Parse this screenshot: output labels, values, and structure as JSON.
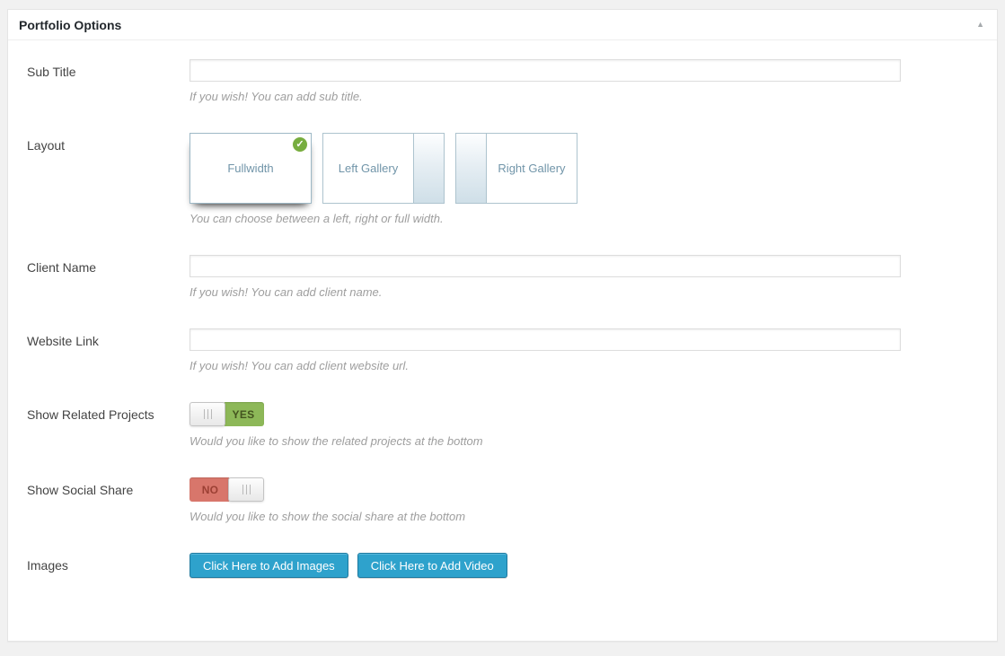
{
  "colors": {
    "accent_blue": "#2ea2cc",
    "toggle_green": "#8db858",
    "toggle_red": "#d8766b",
    "check_badge_green": "#77ad3f",
    "page_background": "#f1f1f1"
  },
  "icons": {
    "collapse": "▲",
    "check": "✓"
  },
  "panel": {
    "title": "Portfolio Options"
  },
  "fields": {
    "sub_title": {
      "label": "Sub Title",
      "value": "",
      "hint": "If you wish! You can add sub title."
    },
    "layout": {
      "label": "Layout",
      "hint": "You can choose between a left, right or full width.",
      "options": [
        {
          "label": "Fullwidth",
          "selected": true
        },
        {
          "label": "Left Gallery",
          "selected": false
        },
        {
          "label": "Right Gallery",
          "selected": false
        }
      ]
    },
    "client_name": {
      "label": "Client Name",
      "value": "",
      "hint": "If you wish! You can add client name."
    },
    "website_link": {
      "label": "Website Link",
      "value": "",
      "hint": "If you wish! You can add client website url."
    },
    "show_related_projects": {
      "label": "Show Related Projects",
      "value": "YES",
      "hint": "Would you like to show the related projects at the bottom"
    },
    "show_social_share": {
      "label": "Show Social Share",
      "value": "NO",
      "hint": "Would you like to show the social share at the bottom"
    },
    "images": {
      "label": "Images",
      "add_images_label": "Click Here to Add Images",
      "add_video_label": "Click Here to Add Video"
    }
  }
}
